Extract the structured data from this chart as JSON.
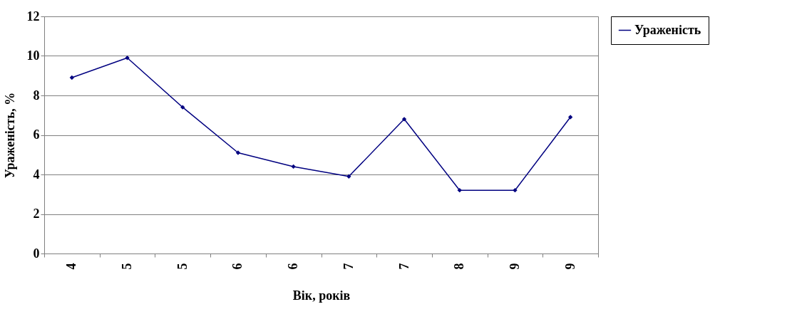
{
  "chart_data": {
    "type": "line",
    "xlabel": "Вік, років",
    "ylabel": "Ураженість, %",
    "categories": [
      "4",
      "5",
      "5",
      "6",
      "6",
      "7",
      "7",
      "8",
      "9",
      "9"
    ],
    "series": [
      {
        "name": "Ураженість",
        "color": "#000080",
        "values": [
          8.9,
          9.9,
          7.4,
          5.1,
          4.4,
          3.9,
          6.8,
          3.2,
          3.2,
          6.9
        ]
      }
    ],
    "ylim": [
      0,
      12
    ],
    "yticks": [
      0,
      2,
      4,
      6,
      8,
      10,
      12
    ],
    "grid": "y",
    "legend": "right",
    "marker": "diamond",
    "line_style": "solid"
  }
}
